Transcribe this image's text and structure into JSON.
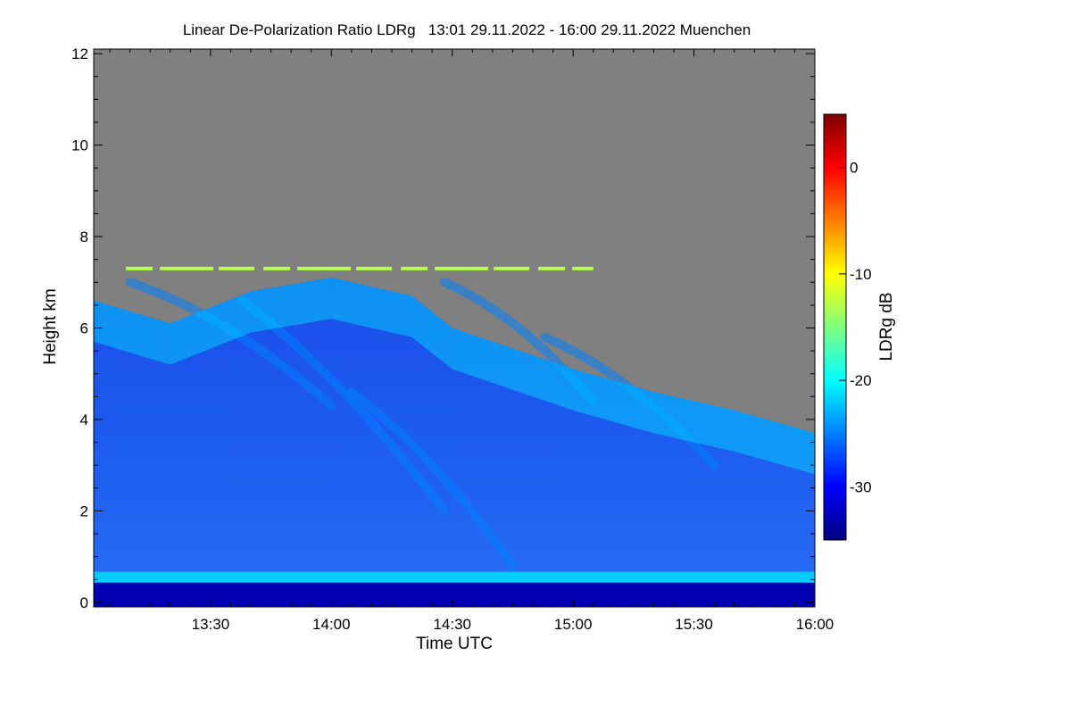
{
  "chart_data": {
    "type": "heatmap",
    "title": "Linear De-Polarization Ratio LDRg   13:01 29.11.2022 - 16:00 29.11.2022 Muenchen",
    "xlabel": "Time UTC",
    "ylabel": "Height km",
    "colorbar_label": "LDRg dB",
    "x_range": [
      "13:01",
      "16:00"
    ],
    "y_range_km": [
      -0.1,
      12.1
    ],
    "clim_db": [
      -35,
      5
    ],
    "x_ticks": [
      {
        "label": "13:30",
        "minutes": 810
      },
      {
        "label": "14:00",
        "minutes": 840
      },
      {
        "label": "14:30",
        "minutes": 870
      },
      {
        "label": "15:00",
        "minutes": 900
      },
      {
        "label": "15:30",
        "minutes": 930
      },
      {
        "label": "16:00",
        "minutes": 960
      }
    ],
    "y_ticks": [
      {
        "label": "0",
        "value": 0
      },
      {
        "label": "2",
        "value": 2
      },
      {
        "label": "4",
        "value": 4
      },
      {
        "label": "6",
        "value": 6
      },
      {
        "label": "8",
        "value": 8
      },
      {
        "label": "10",
        "value": 10
      },
      {
        "label": "12",
        "value": 12
      }
    ],
    "colorbar_ticks": [
      {
        "label": "0",
        "value": 0
      },
      {
        "label": "-10",
        "value": -10
      },
      {
        "label": "-20",
        "value": -20
      },
      {
        "label": "-30",
        "value": -30
      }
    ],
    "colormap": [
      "#00007f",
      "#0000ff",
      "#007fff",
      "#00ffff",
      "#7fff7f",
      "#ffff00",
      "#ff7f00",
      "#ff0000",
      "#7f0000"
    ],
    "no_signal_color": "#808080",
    "features": {
      "cloud_top_km": [
        {
          "t": 781,
          "h": 6.6
        },
        {
          "t": 800,
          "h": 6.1
        },
        {
          "t": 820,
          "h": 6.8
        },
        {
          "t": 840,
          "h": 7.1
        },
        {
          "t": 860,
          "h": 6.7
        },
        {
          "t": 870,
          "h": 6.0
        },
        {
          "t": 880,
          "h": 5.7
        },
        {
          "t": 900,
          "h": 5.1
        },
        {
          "t": 920,
          "h": 4.6
        },
        {
          "t": 940,
          "h": 4.2
        },
        {
          "t": 960,
          "h": 3.7
        }
      ],
      "boundary_layer_height_km": 0.55,
      "boundary_layer_ldr_db": -22,
      "near_surface_ldr_db": -33,
      "bulk_cloud_ldr_db": -30,
      "fall_streak_ldr_db": -25,
      "cloud_top_band_ldr_db": -21,
      "artifact_line_height_km": 7.3,
      "artifact_line_ldr_db": -13
    }
  }
}
